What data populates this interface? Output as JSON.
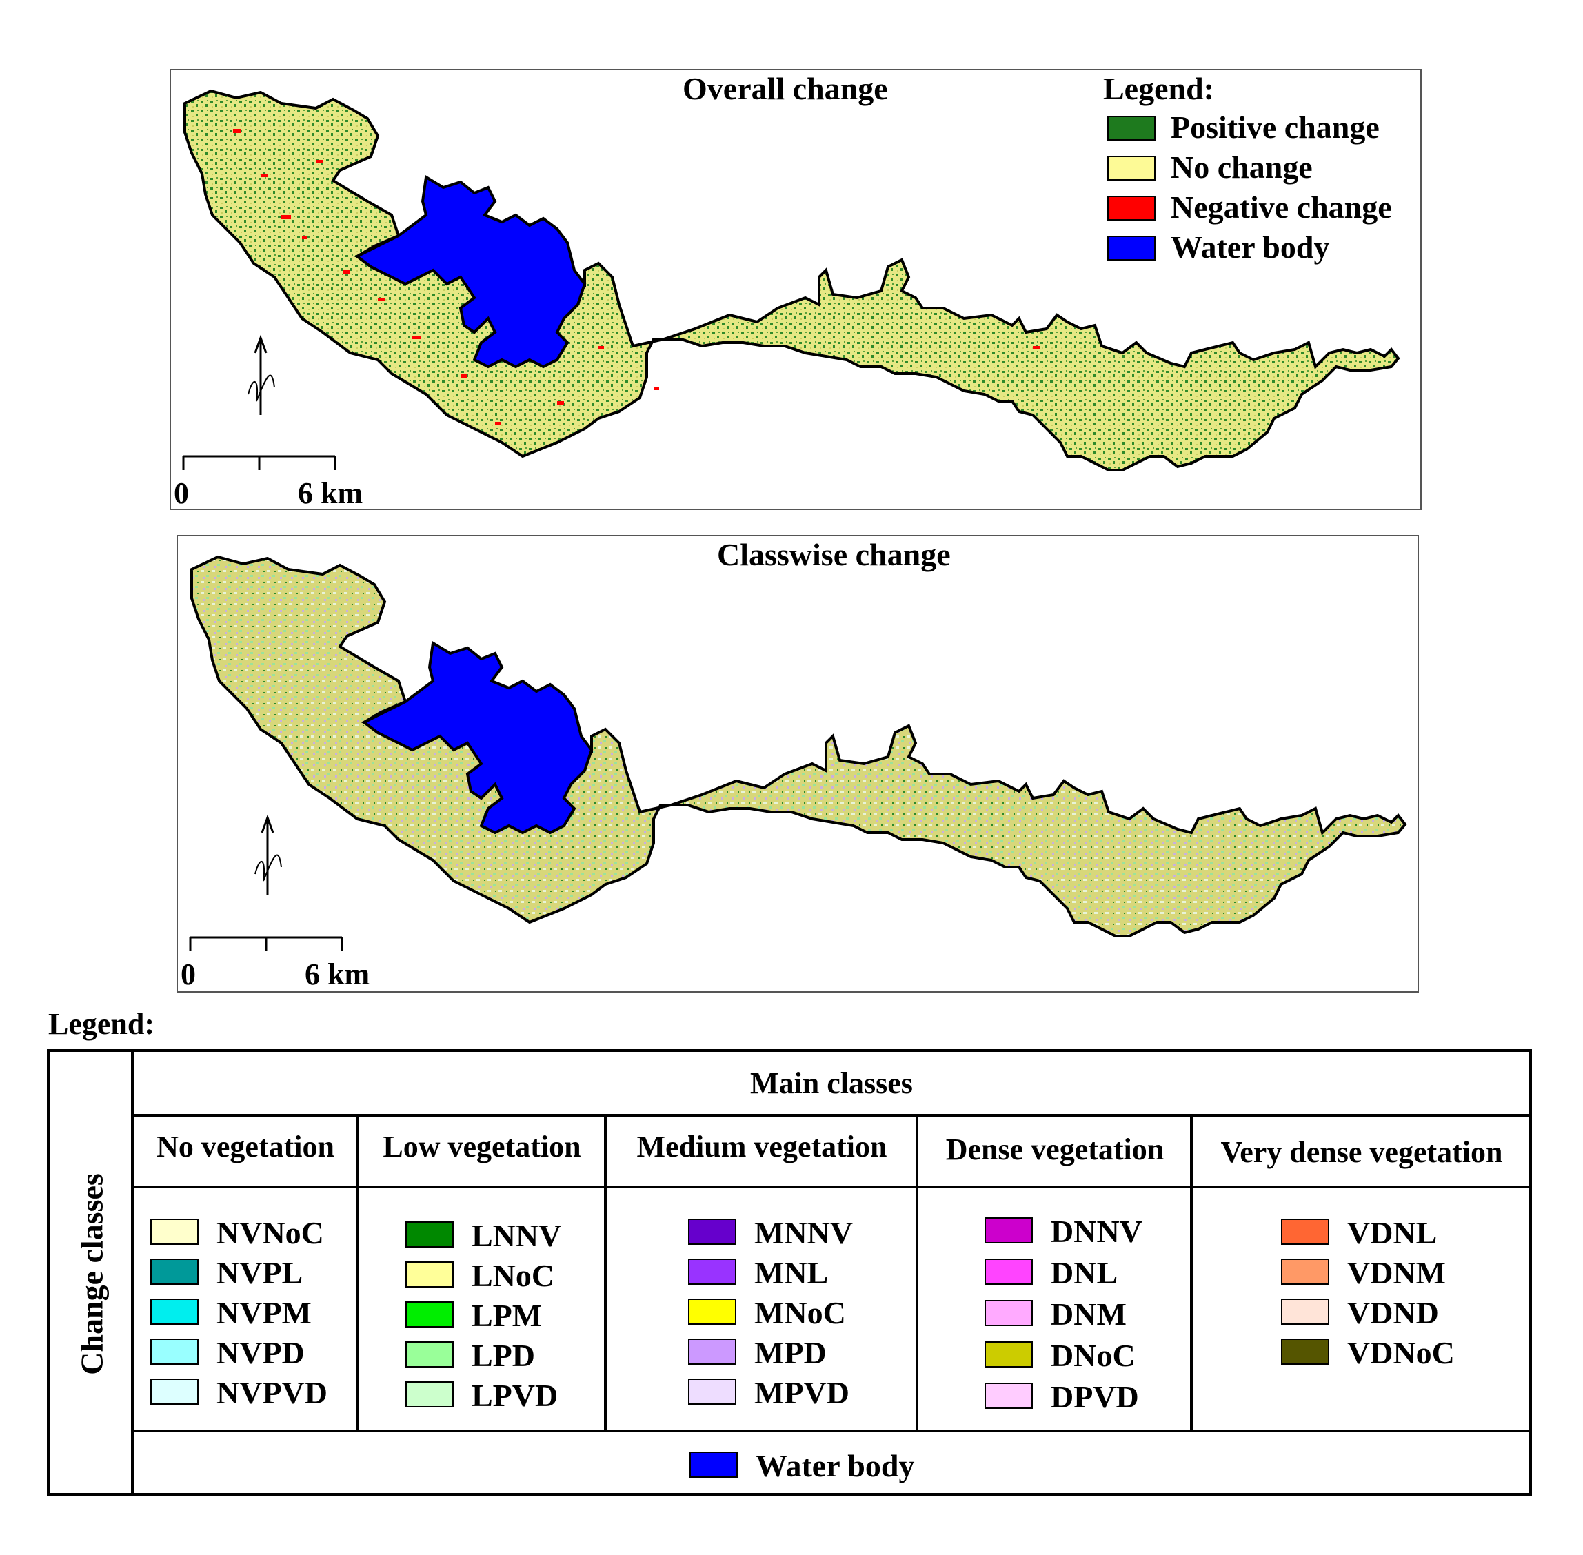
{
  "overall_map": {
    "title": "Overall change",
    "legend_title": "Legend:",
    "legend": [
      {
        "label": "Positive change",
        "color": "#1e7a1e"
      },
      {
        "label": "No change",
        "color": "#fdfa96"
      },
      {
        "label": "Negative change",
        "color": "#ff0000"
      },
      {
        "label": "Water body",
        "color": "#0000ff"
      }
    ],
    "scale": {
      "start": "0",
      "end": "6 km"
    },
    "north_symbol": "N"
  },
  "classwise_map": {
    "title": "Classwise change",
    "scale": {
      "start": "0",
      "end": "6 km"
    },
    "north_symbol": "N"
  },
  "legend_table": {
    "heading": "Legend:",
    "row_header": "Change classes",
    "column_header": "Main classes",
    "groups": [
      {
        "name": "No vegetation",
        "items": [
          {
            "label": "NVNoC",
            "color": "#ffffcc"
          },
          {
            "label": "NVPL",
            "color": "#009999"
          },
          {
            "label": "NVPM",
            "color": "#00eeee"
          },
          {
            "label": "NVPD",
            "color": "#99ffff"
          },
          {
            "label": "NVPVD",
            "color": "#ddffff"
          }
        ]
      },
      {
        "name": "Low vegetation",
        "items": [
          {
            "label": "LNNV",
            "color": "#008800"
          },
          {
            "label": "LNoC",
            "color": "#ffff99"
          },
          {
            "label": "LPM",
            "color": "#00ee00"
          },
          {
            "label": "LPD",
            "color": "#99ff99"
          },
          {
            "label": "LPVD",
            "color": "#ccffcc"
          }
        ]
      },
      {
        "name": "Medium vegetation",
        "items": [
          {
            "label": "MNNV",
            "color": "#6600cc"
          },
          {
            "label": "MNL",
            "color": "#9933ff"
          },
          {
            "label": "MNoC",
            "color": "#ffff00"
          },
          {
            "label": "MPD",
            "color": "#cc99ff"
          },
          {
            "label": "MPVD",
            "color": "#eeddff"
          }
        ]
      },
      {
        "name": "Dense vegetation",
        "items": [
          {
            "label": "DNNV",
            "color": "#cc00cc"
          },
          {
            "label": "DNL",
            "color": "#ff44ff"
          },
          {
            "label": "DNM",
            "color": "#ffaaff"
          },
          {
            "label": "DNoC",
            "color": "#cccc00"
          },
          {
            "label": "DPVD",
            "color": "#ffccff"
          }
        ]
      },
      {
        "name": "Very dense vegetation",
        "items": [
          {
            "label": "VDNL",
            "color": "#ff6633"
          },
          {
            "label": "VDNM",
            "color": "#ff9966"
          },
          {
            "label": "VDND",
            "color": "#ffe4d8"
          },
          {
            "label": "VDNoC",
            "color": "#555500"
          }
        ]
      }
    ],
    "footer": {
      "label": "Water body",
      "color": "#0000ff"
    }
  }
}
